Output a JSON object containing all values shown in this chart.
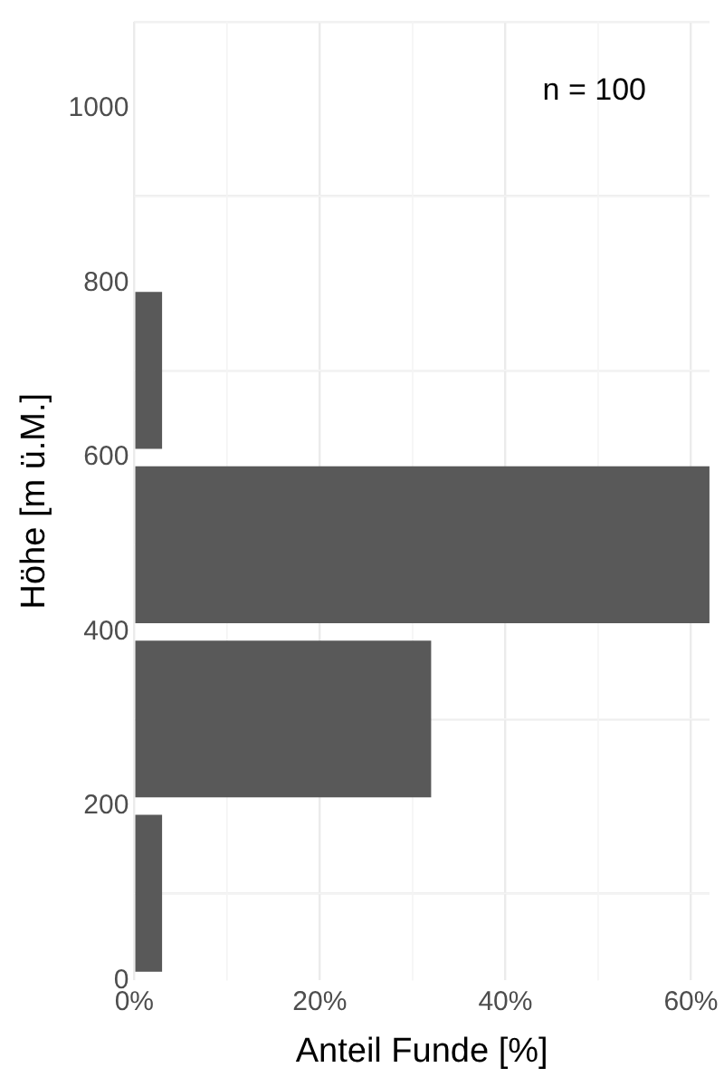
{
  "chart_data": {
    "type": "histogram",
    "orientation": "horizontal",
    "xlabel": "Anteil Funde [%]",
    "ylabel": "Höhe [m ü.M.]",
    "bins": [
      0,
      200,
      400,
      600,
      800
    ],
    "values": [
      3,
      32,
      62,
      3
    ],
    "color": "#595959",
    "xlim": [
      0,
      62
    ],
    "xticks": [
      {
        "value": 0,
        "label": "0%"
      },
      {
        "value": 20,
        "label": "20%"
      },
      {
        "value": 40,
        "label": "40%"
      },
      {
        "value": 60,
        "label": "60%"
      }
    ],
    "ylim": [
      0,
      1100
    ],
    "yticks": [
      0,
      200,
      400,
      600,
      800,
      1000
    ],
    "grid": true,
    "annotations": [
      "n = 100"
    ]
  }
}
